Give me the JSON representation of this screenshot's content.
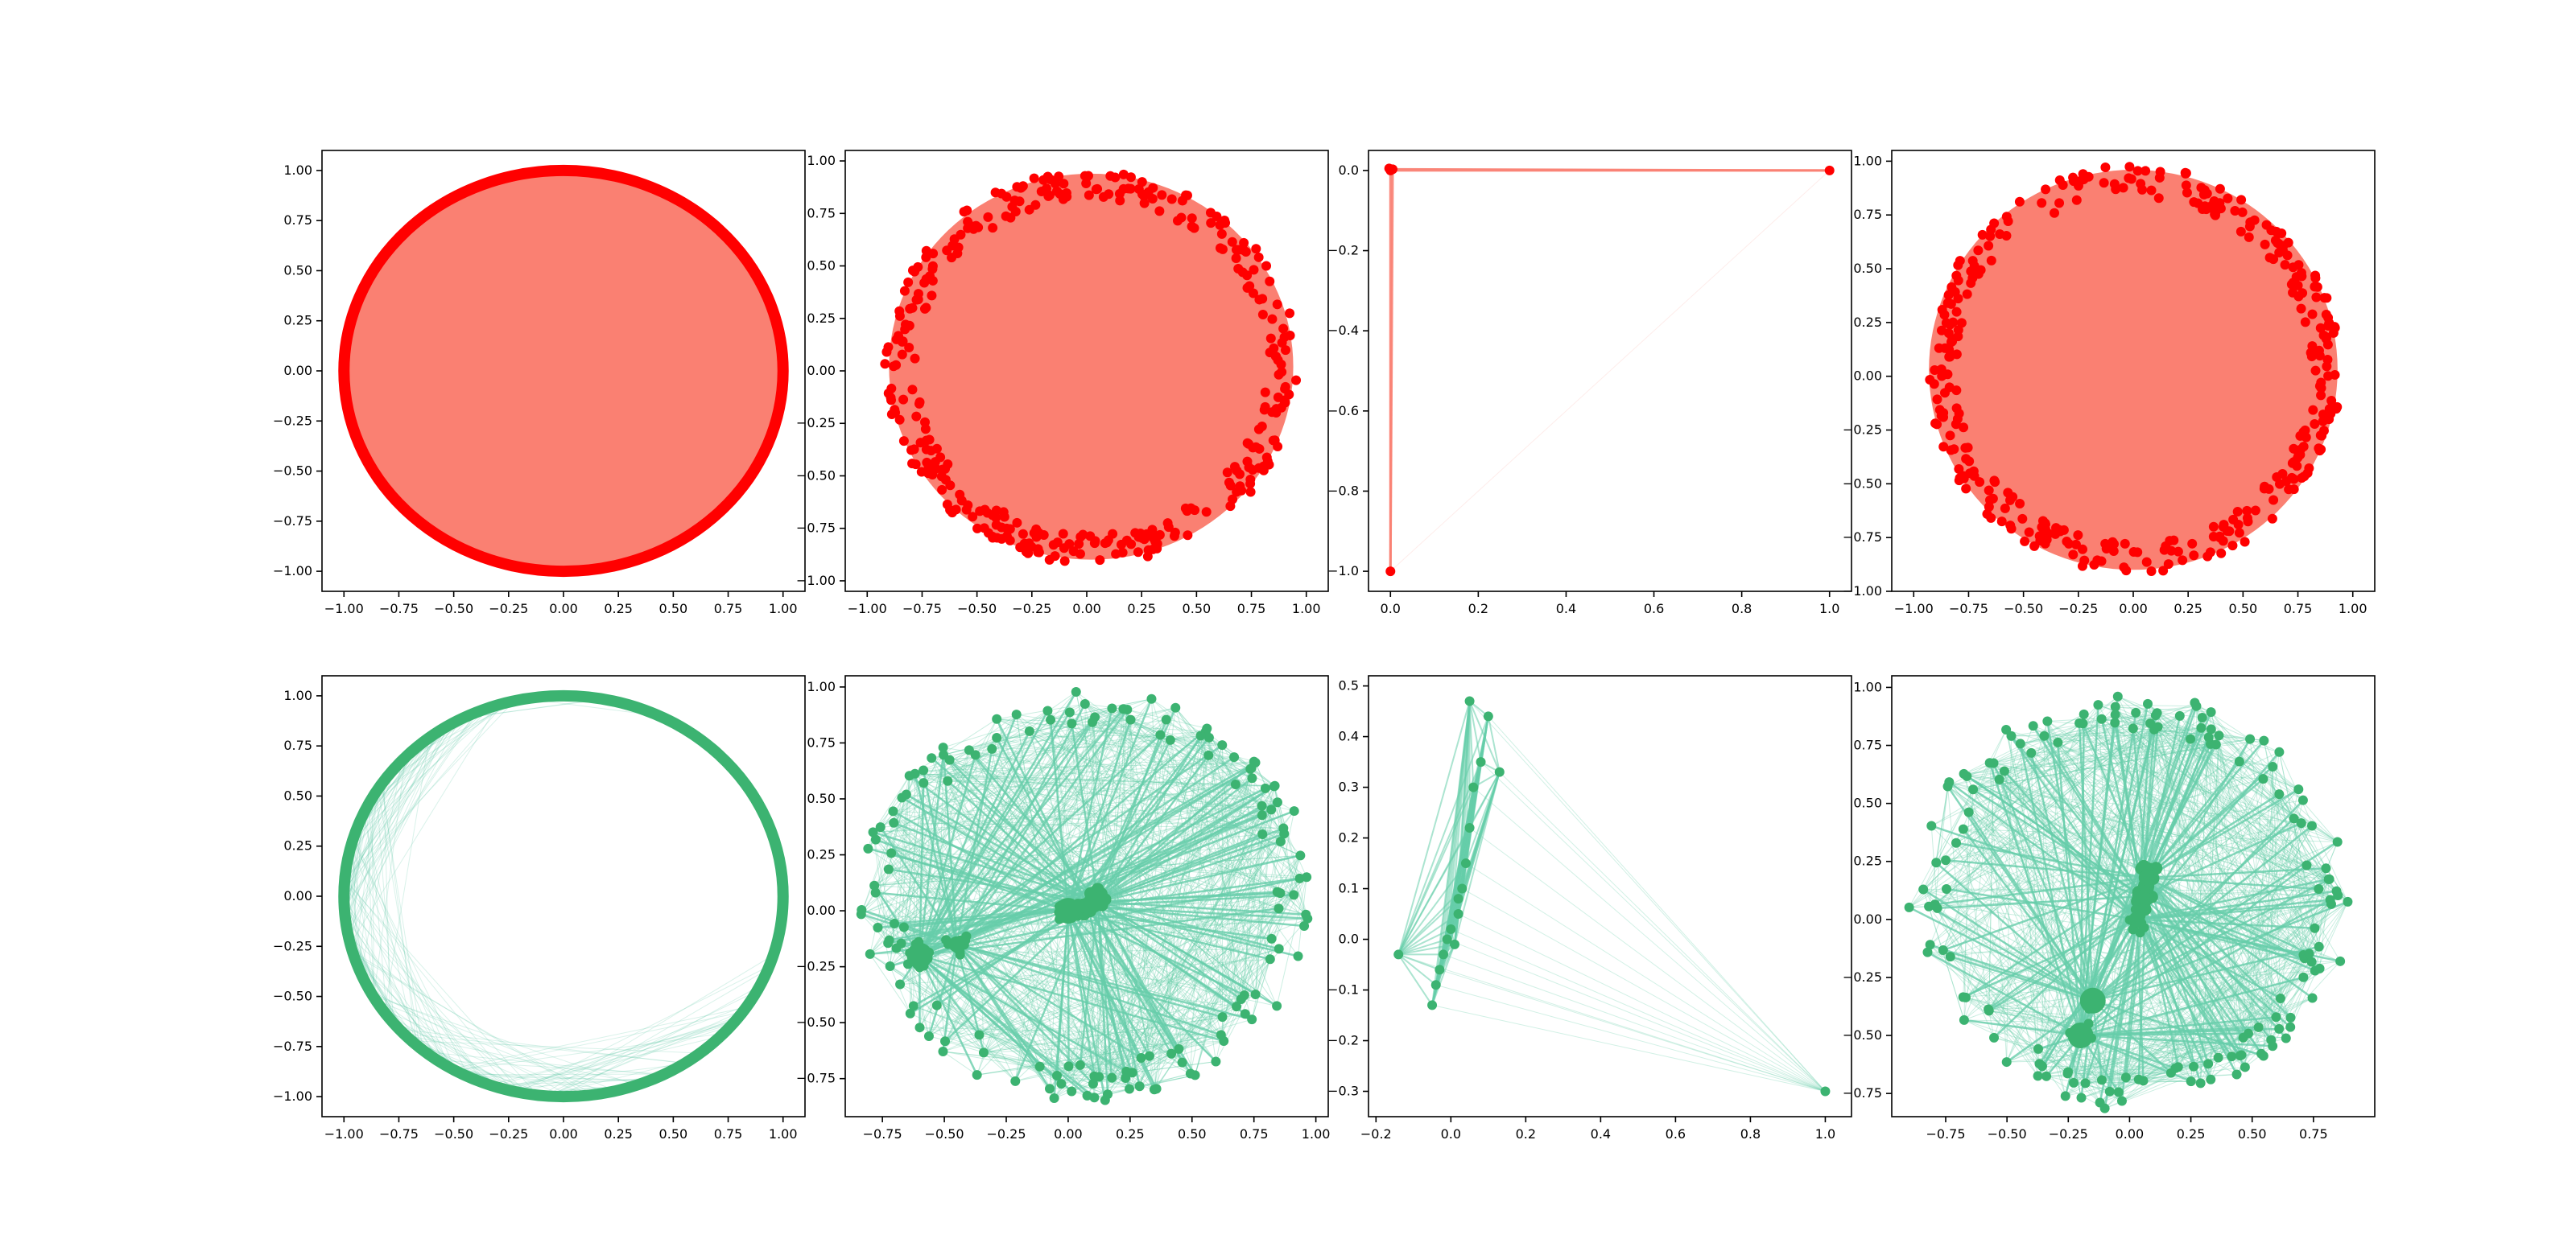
{
  "figure": {
    "background": "#ffffff",
    "rows": 2,
    "cols": 4
  },
  "colors": {
    "red_node": "#ff0000",
    "red_edge": "#fa8072",
    "green_node": "#3cb371",
    "green_edge": "#66cdaa",
    "axis": "#000000",
    "ticklabel": "#000000"
  },
  "chart_data": [
    {
      "id": "r1c1",
      "type": "network",
      "theme": "red",
      "layout": "circular",
      "title": "",
      "xlabel": "",
      "ylabel": "",
      "xlim": [
        -1.1,
        1.1
      ],
      "ylim": [
        -1.1,
        1.1
      ],
      "grid": false,
      "xticks": [
        -1.0,
        -0.75,
        -0.5,
        -0.25,
        0.0,
        0.25,
        0.5,
        0.75,
        1.0
      ],
      "xticklabels": [
        "−1.00",
        "−0.75",
        "−0.50",
        "−0.25",
        "0.00",
        "0.25",
        "0.50",
        "0.75",
        "1.00"
      ],
      "yticks": [
        -1.0,
        -0.75,
        -0.5,
        -0.25,
        0.0,
        0.25,
        0.5,
        0.75,
        1.0
      ],
      "yticklabels": [
        "−1.00",
        "−0.75",
        "−0.50",
        "−0.25",
        "0.00",
        "0.25",
        "0.50",
        "0.75",
        "1.00"
      ],
      "center": [
        0,
        0
      ],
      "radius": 1.0,
      "filled": true
    },
    {
      "id": "r1c2",
      "type": "network",
      "theme": "red",
      "layout": "scattered-ring",
      "title": "",
      "xlabel": "",
      "ylabel": "",
      "xlim": [
        -1.1,
        1.1
      ],
      "ylim": [
        -1.05,
        1.05
      ],
      "grid": false,
      "xticks": [
        -1.0,
        -0.75,
        -0.5,
        -0.25,
        0.0,
        0.25,
        0.5,
        0.75,
        1.0
      ],
      "xticklabels": [
        "−1.00",
        "−0.75",
        "−0.50",
        "−0.25",
        "0.00",
        "0.25",
        "0.50",
        "0.75",
        "1.00"
      ],
      "yticks": [
        -1.0,
        -0.75,
        -0.5,
        -0.25,
        0.0,
        0.25,
        0.5,
        0.75,
        1.0
      ],
      "yticklabels": [
        "−1.00",
        "−0.75",
        "−0.50",
        "−0.25",
        "0.00",
        "0.25",
        "0.50",
        "0.75",
        "1.00"
      ],
      "center": [
        0.02,
        0.02
      ],
      "radius": 0.95,
      "filled": true
    },
    {
      "id": "r1c3",
      "type": "network",
      "theme": "red",
      "layout": "degenerate",
      "title": "",
      "xlabel": "",
      "ylabel": "",
      "xlim": [
        -0.05,
        1.05
      ],
      "ylim": [
        -1.05,
        0.05
      ],
      "grid": false,
      "xticks": [
        0.0,
        0.2,
        0.4,
        0.6,
        0.8,
        1.0
      ],
      "xticklabels": [
        "0.0",
        "0.2",
        "0.4",
        "0.6",
        "0.8",
        "1.0"
      ],
      "yticks": [
        -1.0,
        -0.8,
        -0.6,
        -0.4,
        -0.2,
        0.0
      ],
      "yticklabels": [
        "−1.0",
        "−0.8",
        "−0.6",
        "−0.4",
        "−0.2",
        "0.0"
      ],
      "nodes": [
        [
          0,
          0
        ],
        [
          0.005,
          0.003
        ],
        [
          -0.003,
          0.005
        ],
        [
          1.0,
          0.0
        ],
        [
          0.0,
          -1.0
        ]
      ],
      "edges": [
        [
          0,
          3
        ],
        [
          1,
          3
        ],
        [
          0,
          4
        ],
        [
          3,
          4
        ],
        [
          1,
          4
        ]
      ]
    },
    {
      "id": "r1c4",
      "type": "network",
      "theme": "red",
      "layout": "scattered-ring",
      "title": "",
      "xlabel": "",
      "ylabel": "",
      "xlim": [
        -1.1,
        1.1
      ],
      "ylim": [
        -1.0,
        1.05
      ],
      "grid": false,
      "xticks": [
        -1.0,
        -0.75,
        -0.5,
        -0.25,
        0.0,
        0.25,
        0.5,
        0.75,
        1.0
      ],
      "xticklabels": [
        "−1.00",
        "−0.75",
        "−0.50",
        "−0.25",
        "0.00",
        "0.25",
        "0.50",
        "0.75",
        "1.00"
      ],
      "yticks": [
        -1.0,
        -0.75,
        -0.5,
        -0.25,
        0.0,
        0.25,
        0.5,
        0.75,
        1.0
      ],
      "yticklabels": [
        "−1.00",
        "−0.75",
        "−0.50",
        "−0.25",
        "0.00",
        "0.25",
        "0.50",
        "0.75",
        "1.00"
      ],
      "center": [
        0.0,
        0.03
      ],
      "radius": 0.96,
      "filled": true
    },
    {
      "id": "r2c1",
      "type": "network",
      "theme": "green",
      "layout": "circular",
      "title": "",
      "xlabel": "",
      "ylabel": "",
      "xlim": [
        -1.1,
        1.1
      ],
      "ylim": [
        -1.1,
        1.1
      ],
      "grid": false,
      "xticks": [
        -1.0,
        -0.75,
        -0.5,
        -0.25,
        0.0,
        0.25,
        0.5,
        0.75,
        1.0
      ],
      "xticklabels": [
        "−1.00",
        "−0.75",
        "−0.50",
        "−0.25",
        "0.00",
        "0.25",
        "0.50",
        "0.75",
        "1.00"
      ],
      "yticks": [
        -1.0,
        -0.75,
        -0.5,
        -0.25,
        0.0,
        0.25,
        0.5,
        0.75,
        1.0
      ],
      "yticklabels": [
        "−1.00",
        "−0.75",
        "−0.50",
        "−0.25",
        "0.00",
        "0.25",
        "0.50",
        "0.75",
        "1.00"
      ],
      "center": [
        0,
        0
      ],
      "radius": 1.0,
      "filled": false
    },
    {
      "id": "r2c2",
      "type": "network",
      "theme": "green",
      "layout": "hub-ring",
      "title": "",
      "xlabel": "",
      "ylabel": "",
      "xlim": [
        -0.9,
        1.05
      ],
      "ylim": [
        -0.92,
        1.05
      ],
      "grid": false,
      "xticks": [
        -0.75,
        -0.5,
        -0.25,
        0.0,
        0.25,
        0.5,
        0.75,
        1.0
      ],
      "xticklabels": [
        "−0.75",
        "−0.50",
        "−0.25",
        "0.00",
        "0.25",
        "0.50",
        "0.75",
        "1.00"
      ],
      "yticks": [
        -0.75,
        -0.5,
        -0.25,
        0.0,
        0.25,
        0.5,
        0.75,
        1.0
      ],
      "yticklabels": [
        "−0.75",
        "−0.50",
        "−0.25",
        "0.00",
        "0.25",
        "0.50",
        "0.75",
        "1.00"
      ],
      "center": [
        0.08,
        0.07
      ],
      "radius": 0.92,
      "hubs": [
        [
          0.08,
          0.02
        ],
        [
          0.12,
          0.04
        ],
        [
          0.0,
          0.0
        ],
        [
          -0.6,
          -0.2
        ],
        [
          -0.45,
          -0.15
        ]
      ]
    },
    {
      "id": "r2c3",
      "type": "network",
      "theme": "green",
      "layout": "degenerate",
      "title": "",
      "xlabel": "",
      "ylabel": "",
      "xlim": [
        -0.22,
        1.07
      ],
      "ylim": [
        -0.35,
        0.52
      ],
      "grid": false,
      "xticks": [
        -0.2,
        0.0,
        0.2,
        0.4,
        0.6,
        0.8,
        1.0
      ],
      "xticklabels": [
        "−0.2",
        "0.0",
        "0.2",
        "0.4",
        "0.6",
        "0.8",
        "1.0"
      ],
      "yticks": [
        -0.3,
        -0.2,
        -0.1,
        0.0,
        0.1,
        0.2,
        0.3,
        0.4,
        0.5
      ],
      "yticklabels": [
        "−0.3",
        "−0.2",
        "−0.1",
        "0.0",
        "0.1",
        "0.2",
        "0.3",
        "0.4",
        "0.5"
      ],
      "nodes": [
        [
          0.05,
          0.47
        ],
        [
          0.1,
          0.44
        ],
        [
          0.13,
          0.33
        ],
        [
          0.08,
          0.35
        ],
        [
          0.06,
          0.3
        ],
        [
          0.05,
          0.22
        ],
        [
          0.04,
          0.15
        ],
        [
          0.03,
          0.1
        ],
        [
          0.02,
          0.05
        ],
        [
          0.0,
          0.02
        ],
        [
          -0.01,
          0.0
        ],
        [
          -0.02,
          -0.03
        ],
        [
          -0.03,
          -0.06
        ],
        [
          -0.04,
          -0.09
        ],
        [
          -0.05,
          -0.13
        ],
        [
          -0.14,
          -0.03
        ],
        [
          1.0,
          -0.3
        ],
        [
          0.02,
          0.08
        ],
        [
          0.01,
          -0.01
        ]
      ]
    },
    {
      "id": "r2c4",
      "type": "network",
      "theme": "green",
      "layout": "hub-ring",
      "title": "",
      "xlabel": "",
      "ylabel": "",
      "xlim": [
        -0.97,
        1.0
      ],
      "ylim": [
        -0.85,
        1.05
      ],
      "grid": false,
      "xticks": [
        -0.75,
        -0.5,
        -0.25,
        0.0,
        0.25,
        0.5,
        0.75
      ],
      "xticklabels": [
        "−0.75",
        "−0.50",
        "−0.25",
        "0.00",
        "0.25",
        "0.50",
        "0.75"
      ],
      "yticks": [
        -0.75,
        -0.5,
        -0.25,
        0.0,
        0.25,
        0.5,
        0.75,
        1.0
      ],
      "yticklabels": [
        "−0.75",
        "−0.50",
        "−0.25",
        "0.00",
        "0.25",
        "0.50",
        "0.75",
        "1.00"
      ],
      "center": [
        0.0,
        0.08
      ],
      "radius": 0.9,
      "hubs": [
        [
          0.05,
          0.1
        ],
        [
          0.07,
          0.18
        ],
        [
          -0.2,
          -0.5
        ],
        [
          -0.15,
          -0.35
        ],
        [
          0.03,
          0.0
        ]
      ]
    }
  ]
}
